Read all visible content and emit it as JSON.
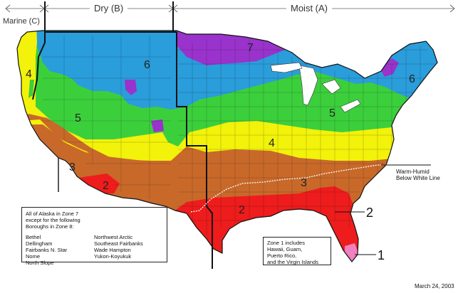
{
  "header": {
    "marine": "Marine (C)",
    "dry": "Dry (B)",
    "moist": "Moist (A)"
  },
  "zones": {
    "z7": "7",
    "z6_west": "6",
    "z6_east": "6",
    "z5_west": "5",
    "z5_east": "5",
    "z4_west": "4",
    "z4_east": "4",
    "z3_west": "3",
    "z3_east": "3",
    "z2_west": "2",
    "z2_gulf": "2",
    "z2_callout": "2",
    "z1_callout": "1"
  },
  "warm_humid": {
    "line1": "Warm-Humid",
    "line2": "Below White Line"
  },
  "alaska_note": {
    "intro_l1": "All of Alaska in Zone 7",
    "intro_l2": "except for the following",
    "intro_l3": "Boroughs in Zone 8:",
    "left": [
      "Bethel",
      "Dellingham",
      "Fairbanks N. Star",
      "Nome",
      "North Slope"
    ],
    "right": [
      "Northwest Arctic",
      "Southeast Fairbanks",
      "Wade Hampton",
      "Yukon-Koyukuk"
    ]
  },
  "zone1_note": {
    "l1": "Zone 1 includes",
    "l2": "Hawaii, Guam,",
    "l3": "Puerto Rico,",
    "l4": "and the Virgin Islands"
  },
  "date": "March 24, 2003",
  "colors": {
    "zone1": "#f080c0",
    "zone2": "#ee1c1c",
    "zone3": "#c8692a",
    "zone4": "#f2f20a",
    "zone5": "#3ccf3c",
    "zone6": "#2a9ddb",
    "zone7": "#9933cc"
  }
}
